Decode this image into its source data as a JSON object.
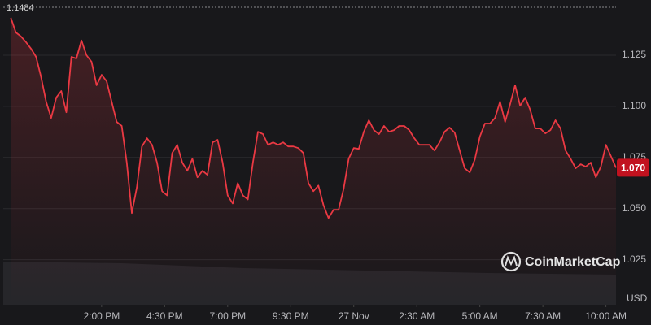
{
  "chart_data": {
    "type": "line",
    "x": [
      10.4,
      10.6,
      10.8,
      11,
      11.2,
      11.4,
      11.6,
      11.8,
      12,
      12.2,
      12.4,
      12.6,
      12.8,
      13,
      13.2,
      13.4,
      13.6,
      13.8,
      14,
      14.2,
      14.4,
      14.6,
      14.8,
      15,
      15.2,
      15.4,
      15.6,
      15.8,
      16,
      16.2,
      16.4,
      16.6,
      16.8,
      17,
      17.2,
      17.4,
      17.6,
      17.8,
      18,
      18.2,
      18.4,
      18.6,
      18.8,
      19,
      19.2,
      19.4,
      19.6,
      19.8,
      20,
      20.2,
      20.4,
      20.6,
      20.8,
      21,
      21.2,
      21.4,
      21.6,
      21.8,
      22,
      22.2,
      22.4,
      22.6,
      22.8,
      23,
      23.2,
      23.4,
      23.6,
      23.8,
      24,
      24.2,
      24.4,
      24.6,
      24.8,
      25,
      25.2,
      25.4,
      25.6,
      25.8,
      26,
      26.2,
      26.4,
      26.6,
      26.8,
      27,
      27.2,
      27.4,
      27.6,
      27.8,
      28,
      28.2,
      28.4,
      28.6,
      28.8,
      29,
      29.2,
      29.4,
      29.6,
      29.8,
      30,
      30.2,
      30.4,
      30.6,
      30.8,
      31,
      31.2,
      31.4,
      31.6,
      31.8,
      32,
      32.2,
      32.4,
      32.6,
      32.8,
      33,
      33.2,
      33.4,
      33.6,
      33.8,
      34,
      34.2,
      34.4
    ],
    "values": [
      1.1433,
      1.1361,
      1.1342,
      1.1314,
      1.1282,
      1.1242,
      1.1143,
      1.1023,
      1.0943,
      1.1043,
      1.1075,
      1.0971,
      1.1242,
      1.1234,
      1.1322,
      1.125,
      1.1218,
      1.1103,
      1.1154,
      1.1123,
      1.1023,
      1.0924,
      1.0904,
      1.0725,
      1.0478,
      1.0605,
      1.0804,
      1.0844,
      1.0812,
      1.0725,
      1.0585,
      1.0565,
      1.0772,
      1.0812,
      1.0725,
      1.0685,
      1.0744,
      1.0653,
      1.0685,
      1.0665,
      1.0824,
      1.0836,
      1.0725,
      1.0565,
      1.0525,
      1.0625,
      1.0565,
      1.0545,
      1.0725,
      1.0876,
      1.0864,
      1.0812,
      1.0824,
      1.0812,
      1.0824,
      1.0804,
      1.0804,
      1.0796,
      1.0772,
      1.0625,
      1.0585,
      1.0613,
      1.0517,
      1.0454,
      1.0494,
      1.0494,
      1.0597,
      1.0744,
      1.0796,
      1.0792,
      1.0876,
      1.0932,
      1.0884,
      1.0864,
      1.0904,
      1.0876,
      1.0884,
      1.0904,
      1.0904,
      1.0884,
      1.0844,
      1.0812,
      1.0812,
      1.0812,
      1.0784,
      1.0824,
      1.0876,
      1.0896,
      1.0872,
      1.0784,
      1.0697,
      1.0677,
      1.074,
      1.0852,
      1.0916,
      1.0916,
      1.0943,
      1.1023,
      1.0924,
      1.1011,
      1.1103,
      1.1003,
      1.1043,
      1.0983,
      1.0892,
      1.0892,
      1.0868,
      1.0884,
      1.0932,
      1.0892,
      1.0784,
      1.0744,
      1.0697,
      1.0717,
      1.0705,
      1.0725,
      1.0653,
      1.0705,
      1.0812,
      1.0756,
      1.07
    ],
    "color": "#ea3943",
    "xlim": [
      10.1,
      34.4
    ],
    "xticks": [
      {
        "value": 14,
        "label": "2:00 PM"
      },
      {
        "value": 16.5,
        "label": "4:30 PM"
      },
      {
        "value": 19,
        "label": "7:00 PM"
      },
      {
        "value": 21.5,
        "label": "9:30 PM"
      },
      {
        "value": 24,
        "label": "27 Nov"
      },
      {
        "value": 26.5,
        "label": "2:30 AM"
      },
      {
        "value": 29,
        "label": "5:00 AM"
      },
      {
        "value": 31.5,
        "label": "7:30 AM"
      },
      {
        "value": 34,
        "label": "10:00 AM"
      }
    ],
    "ylim": [
      1.003,
      1.152
    ],
    "yticks": [
      1.025,
      {
        "value": 1.05,
        "label": "1.050"
      },
      1.075,
      {
        "value": 1.1,
        "label": "1.100"
      },
      1.125
    ],
    "y_label": "USD",
    "high": 1.1484,
    "current_price": {
      "value": 1.07,
      "label": "1.070"
    },
    "watermark": "CoinMarketCap",
    "grid": true
  }
}
